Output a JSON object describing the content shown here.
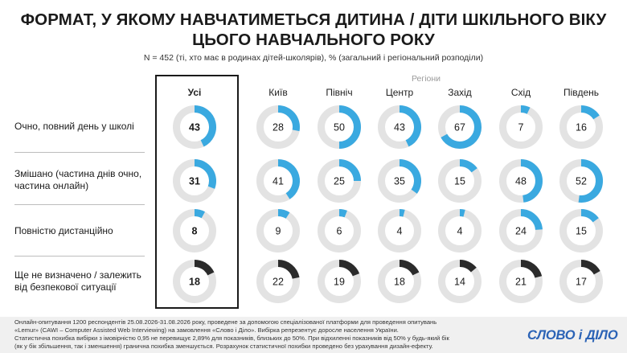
{
  "title_line1": "ФОРМАТ, У ЯКОМУ НАВЧАТИМЕТЬСЯ ДИТИНА / ДІТИ ШКІЛЬНОГО ВІКУ",
  "title_line2": "ЦЬОГО НАВЧАЛЬНОГО РОКУ",
  "subtitle": "N = 452 (ті, хто має в родинах дітей-школярів), % (загальний і регіональний розподіли)",
  "regions_label": "Регіони",
  "footer_lines": [
    "Онлайн-опитування 1200 респондентів 25.08.2026-31.08.2026 року, проведене за допомогою спеціалізованої платформи для проведення опитувань",
    "«Lemur» (CAWI – Computer Assisted Web Interviewing) на замовлення «Слово і Діло». Вибірка репрезентує доросле населення України.",
    "Статистична похибка вибірки з імовірністю 0,95 не перевищує 2,89% для показників, близьких до 50%. При відхиленні показників від 50% у будь-який бік",
    "(як у бік збільшення, так і зменшення) гранична похибка зменшується. Розрахунок статистичної похибки проведено без урахування дизайн-ефекту."
  ],
  "logo_text": "СЛОВО і ДІЛО",
  "colors": {
    "accent": "#3aa9e0",
    "dark": "#2b2b2b",
    "track": "#e3e3e3",
    "logo": "#2b63b6"
  },
  "chart_data": {
    "type": "donut-grid",
    "categories": [
      "Усі",
      "Київ",
      "Північ",
      "Центр",
      "Захід",
      "Схід",
      "Південь"
    ],
    "rows": [
      {
        "label": "Очно, повний день у школі",
        "values": [
          43,
          28,
          50,
          43,
          67,
          7,
          16
        ],
        "color": "accent"
      },
      {
        "label": "Змішано (частина днів очно, частина онлайн)",
        "values": [
          31,
          41,
          25,
          35,
          15,
          48,
          52
        ],
        "color": "accent"
      },
      {
        "label": "Повністю дистанційно",
        "values": [
          8,
          9,
          6,
          4,
          4,
          24,
          15
        ],
        "color": "accent"
      },
      {
        "label": "Ще не визначено / залежить від безпекової ситуації",
        "values": [
          18,
          22,
          19,
          18,
          14,
          21,
          17
        ],
        "color": "dark"
      }
    ],
    "unit": "%"
  }
}
